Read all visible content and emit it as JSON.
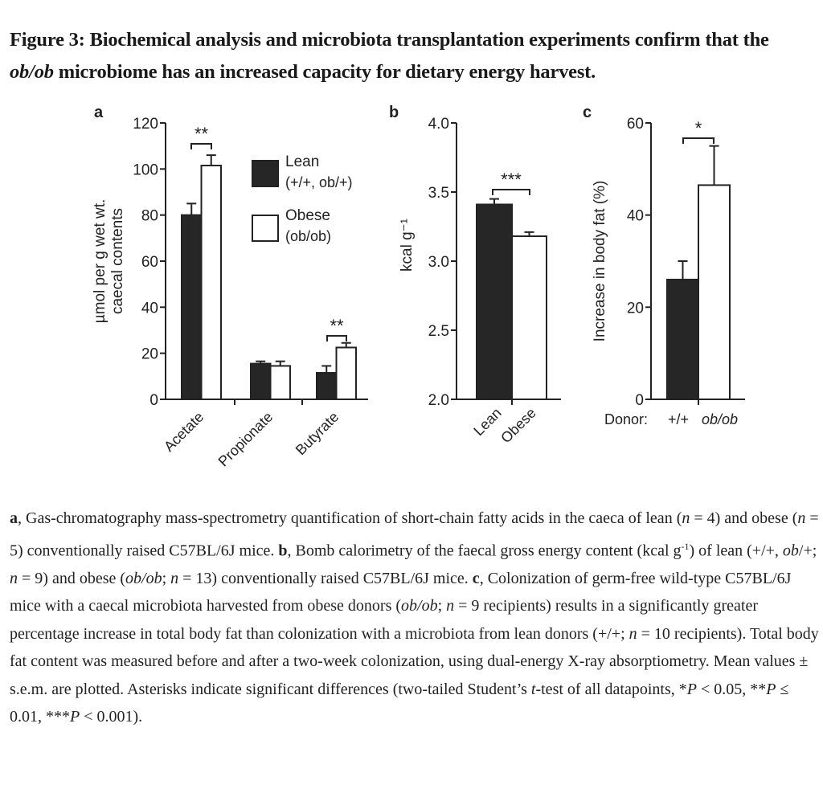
{
  "title": [
    {
      "text": "Figure 3: Biochemical analysis and microbiota transplantation experiments confirm that the "
    },
    {
      "text": "ob/ob",
      "i": true
    },
    {
      "text": " microbiome has an increased capacity for dietary energy harvest."
    }
  ],
  "colors": {
    "lean": "#262626",
    "obese": "#ffffff",
    "axis": "#222222"
  },
  "chart_data": [
    {
      "panel": "a",
      "type": "bar",
      "ylabel": [
        "µmol per g wet wt.",
        "caecal contents"
      ],
      "ylim": [
        0,
        120
      ],
      "yticks": [
        "0",
        "20",
        "40",
        "60",
        "80",
        "100",
        "120"
      ],
      "categories": [
        "Acetate",
        "Propionate",
        "Butyrate"
      ],
      "series": [
        {
          "name": "Lean",
          "name_detail": "(+/+, ob/+)",
          "values": [
            80,
            15.5,
            11.5
          ],
          "sem": [
            5,
            1,
            3
          ]
        },
        {
          "name": "Obese",
          "name_detail": "(ob/ob)",
          "values": [
            101.5,
            14.5,
            22.5
          ],
          "sem": [
            4.5,
            2,
            2
          ]
        }
      ],
      "significance": [
        {
          "category": "Acetate",
          "label": "**"
        },
        {
          "category": "Butyrate",
          "label": "**"
        }
      ],
      "legend": "top-right"
    },
    {
      "panel": "b",
      "type": "bar",
      "ylabel": "kcal g⁻¹",
      "ylim": [
        2.0,
        4.0
      ],
      "yticks": [
        "2.0",
        "2.5",
        "3.0",
        "3.5",
        "4.0"
      ],
      "categories": [
        "Lean",
        "Obese"
      ],
      "values": [
        3.41,
        3.18
      ],
      "sem": [
        0.04,
        0.03
      ],
      "significance": [
        {
          "label": "***"
        }
      ]
    },
    {
      "panel": "c",
      "type": "bar",
      "ylabel": "Increase in body fat (%)",
      "ylim": [
        0,
        60
      ],
      "yticks": [
        "0",
        "20",
        "40",
        "60"
      ],
      "xlabel_prefix": "Donor:",
      "categories": [
        "+/+",
        "ob/ob"
      ],
      "values": [
        26,
        46.5
      ],
      "sem": [
        4,
        8.5
      ],
      "significance": [
        {
          "label": "*"
        }
      ]
    }
  ],
  "caption": [
    {
      "text": "a",
      "b": true
    },
    {
      "text": ", Gas-chromatography mass-spectrometry quantification of short-chain fatty acids in the caeca of lean ("
    },
    {
      "text": "n",
      "i": true
    },
    {
      "text": " = 4) and obese ("
    },
    {
      "text": "n",
      "i": true
    },
    {
      "text": " = 5) conventionally raised C57BL/6J mice. "
    },
    {
      "text": "b",
      "b": true
    },
    {
      "text": ", Bomb calorimetry of the faecal gross energy content (kcal g"
    },
    {
      "text": "-1",
      "sup": true
    },
    {
      "text": ") of lean (+/+, "
    },
    {
      "text": "ob",
      "i": true
    },
    {
      "text": "/+; "
    },
    {
      "text": "n",
      "i": true
    },
    {
      "text": " = 9) and obese ("
    },
    {
      "text": "ob/ob",
      "i": true
    },
    {
      "text": "; "
    },
    {
      "text": "n",
      "i": true
    },
    {
      "text": " = 13) conventionally raised C57BL/6J mice. "
    },
    {
      "text": "c",
      "b": true
    },
    {
      "text": ", Colonization of germ-free wild-type C57BL/6J mice with a caecal microbiota harvested from obese donors ("
    },
    {
      "text": "ob/ob",
      "i": true
    },
    {
      "text": "; "
    },
    {
      "text": "n",
      "i": true
    },
    {
      "text": " = 9 recipients) results in a significantly greater percentage increase in total body fat than colonization with a microbiota from lean donors (+/+; "
    },
    {
      "text": "n",
      "i": true
    },
    {
      "text": " = 10 recipients). Total body fat content was measured before and after a two-week colonization, using dual-energy X-ray absorptiometry. Mean values ± s.e.m. are plotted. Asterisks indicate significant differences (two-tailed Student’s "
    },
    {
      "text": "t",
      "i": true
    },
    {
      "text": "-test of all datapoints, *"
    },
    {
      "text": "P",
      "i": true
    },
    {
      "text": " < 0.05, **"
    },
    {
      "text": "P",
      "i": true
    },
    {
      "text": " ≤ 0.01, ***"
    },
    {
      "text": "P",
      "i": true
    },
    {
      "text": " < 0.001)."
    }
  ]
}
